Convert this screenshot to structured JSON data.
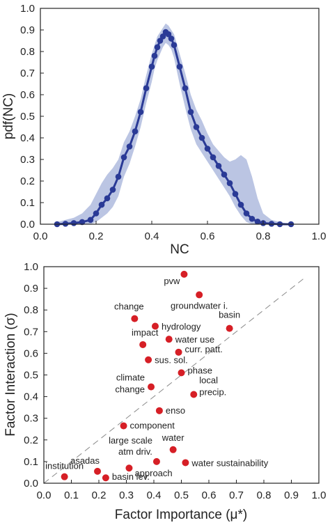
{
  "chart_data": [
    {
      "type": "line",
      "xlabel": "NC",
      "ylabel": "pdf(NC)",
      "xlim": [
        0,
        1.0
      ],
      "ylim": [
        0,
        1.0
      ],
      "xticks": [
        0,
        0.2,
        0.4,
        0.6,
        0.8,
        1.0
      ],
      "yticks": [
        0,
        0.1,
        0.2,
        0.3,
        0.4,
        0.5,
        0.6,
        0.7,
        0.8,
        0.9,
        1.0
      ],
      "xtick_labels": [
        "0.0",
        "0.2",
        "0.4",
        "0.6",
        "0.8",
        "1.0"
      ],
      "ytick_labels": [
        "0.0",
        "0.1",
        "0.2",
        "0.3",
        "0.4",
        "0.5",
        "0.6",
        "0.7",
        "0.8",
        "0.9",
        "1.0"
      ],
      "line_color": "#2a3a96",
      "band_color": "#8e9fd0",
      "series": [
        {
          "x": [
            0.06,
            0.09,
            0.12,
            0.15,
            0.18,
            0.2,
            0.22,
            0.24,
            0.26,
            0.28,
            0.3,
            0.32,
            0.34,
            0.36,
            0.38,
            0.4,
            0.41,
            0.42,
            0.43,
            0.44,
            0.45,
            0.46,
            0.47,
            0.48,
            0.5,
            0.52,
            0.54,
            0.56,
            0.58,
            0.6,
            0.62,
            0.64,
            0.66,
            0.68,
            0.7,
            0.72,
            0.74,
            0.76,
            0.78,
            0.8,
            0.83,
            0.86,
            0.9
          ],
          "y": [
            0.0,
            0.002,
            0.005,
            0.01,
            0.02,
            0.05,
            0.09,
            0.12,
            0.16,
            0.22,
            0.31,
            0.36,
            0.43,
            0.52,
            0.63,
            0.73,
            0.78,
            0.82,
            0.85,
            0.87,
            0.89,
            0.88,
            0.86,
            0.83,
            0.73,
            0.63,
            0.52,
            0.45,
            0.4,
            0.35,
            0.31,
            0.27,
            0.23,
            0.19,
            0.14,
            0.09,
            0.05,
            0.025,
            0.012,
            0.005,
            0.002,
            0.0,
            0.0
          ],
          "lower": [
            0.0,
            0.0,
            0.0,
            0.0,
            0.0,
            0.01,
            0.03,
            0.05,
            0.08,
            0.13,
            0.22,
            0.28,
            0.36,
            0.45,
            0.56,
            0.66,
            0.72,
            0.76,
            0.79,
            0.82,
            0.84,
            0.83,
            0.81,
            0.77,
            0.65,
            0.54,
            0.44,
            0.37,
            0.33,
            0.29,
            0.25,
            0.21,
            0.17,
            0.13,
            0.08,
            0.04,
            0.01,
            0.0,
            0.0,
            0.0,
            0.0,
            0.0,
            0.0
          ],
          "upper": [
            0.01,
            0.02,
            0.03,
            0.05,
            0.09,
            0.14,
            0.19,
            0.23,
            0.26,
            0.3,
            0.38,
            0.43,
            0.5,
            0.58,
            0.69,
            0.79,
            0.83,
            0.87,
            0.89,
            0.91,
            0.93,
            0.92,
            0.9,
            0.88,
            0.79,
            0.7,
            0.6,
            0.53,
            0.48,
            0.42,
            0.37,
            0.34,
            0.31,
            0.29,
            0.3,
            0.32,
            0.3,
            0.22,
            0.12,
            0.05,
            0.02,
            0.01,
            0.0
          ]
        }
      ]
    },
    {
      "type": "scatter",
      "xlabel": "Factor Importance (μ*)",
      "ylabel": "Factor Interaction (σ)",
      "xlim": [
        0,
        1.0
      ],
      "ylim": [
        0,
        1.0
      ],
      "xticks": [
        0,
        0.1,
        0.2,
        0.3,
        0.4,
        0.5,
        0.6,
        0.7,
        0.8,
        0.9,
        1.0
      ],
      "yticks": [
        0,
        0.1,
        0.2,
        0.3,
        0.4,
        0.5,
        0.6,
        0.7,
        0.8,
        0.9,
        1.0
      ],
      "xtick_labels": [
        "0.0",
        "0.1",
        "0.2",
        "0.3",
        "0.4",
        "0.5",
        "0.6",
        "0.7",
        "0.8",
        "0.9",
        "1.0"
      ],
      "ytick_labels": [
        "0.0",
        "0.1",
        "0.2",
        "0.3",
        "0.4",
        "0.5",
        "0.6",
        "0.7",
        "0.8",
        "0.9",
        "1.0"
      ],
      "point_color": "#d61f26",
      "reference_line": {
        "style": "dashed",
        "from": [
          0,
          0
        ],
        "to": [
          0.95,
          0.95
        ]
      },
      "points": [
        {
          "label": "pvw",
          "x": 0.51,
          "y": 0.965,
          "anchor": "end",
          "dx": -6,
          "dy": 14
        },
        {
          "label": "groundwater i.",
          "x": 0.565,
          "y": 0.87,
          "anchor": "middle",
          "dx": 0,
          "dy": 20
        },
        {
          "label": "change",
          "x": 0.33,
          "y": 0.76,
          "anchor": "middle",
          "dx": -8,
          "dy": -13
        },
        {
          "label": "basin",
          "x": 0.675,
          "y": 0.715,
          "anchor": "middle",
          "dx": 0,
          "dy": -15
        },
        {
          "label": "hydrology",
          "x": 0.405,
          "y": 0.725,
          "anchor": "start",
          "dx": 9,
          "dy": 5
        },
        {
          "label": "impact",
          "x": 0.36,
          "y": 0.64,
          "anchor": "middle",
          "dx": 3,
          "dy": -13
        },
        {
          "label": "water use",
          "x": 0.455,
          "y": 0.665,
          "anchor": "start",
          "dx": 9,
          "dy": 5
        },
        {
          "label": "curr. patt.",
          "x": 0.49,
          "y": 0.605,
          "anchor": "start",
          "dx": 9,
          "dy": 0
        },
        {
          "label": "sus. sol.",
          "x": 0.38,
          "y": 0.57,
          "anchor": "start",
          "dx": 9,
          "dy": 5
        },
        {
          "label": "phase",
          "x": 0.5,
          "y": 0.51,
          "anchor": "start",
          "dx": 9,
          "dy": 1
        },
        {
          "label": "climate",
          "x": 0.39,
          "y": 0.445,
          "anchor": "end",
          "dx": -9,
          "dy": -9
        },
        {
          "label": "change",
          "x": 0.39,
          "y": 0.445,
          "anchor": "end",
          "dx": -9,
          "dy": 8
        },
        {
          "label": "local",
          "x": 0.545,
          "y": 0.41,
          "anchor": "start",
          "dx": 8,
          "dy": -16
        },
        {
          "label": "precip.",
          "x": 0.545,
          "y": 0.41,
          "anchor": "start",
          "dx": 8,
          "dy": 1
        },
        {
          "label": "enso",
          "x": 0.42,
          "y": 0.335,
          "anchor": "start",
          "dx": 9,
          "dy": 4
        },
        {
          "label": "component",
          "x": 0.29,
          "y": 0.265,
          "anchor": "start",
          "dx": 9,
          "dy": 4
        },
        {
          "label": "water",
          "x": 0.47,
          "y": 0.155,
          "anchor": "middle",
          "dx": 0,
          "dy": -13
        },
        {
          "label": "large scale",
          "x": 0.41,
          "y": 0.1,
          "anchor": "end",
          "dx": -6,
          "dy": -26
        },
        {
          "label": "atm driv.",
          "x": 0.41,
          "y": 0.1,
          "anchor": "end",
          "dx": -6,
          "dy": -10
        },
        {
          "label": "asadas",
          "x": 0.195,
          "y": 0.055,
          "anchor": "end",
          "dx": 3,
          "dy": -11
        },
        {
          "label": "institution",
          "x": 0.075,
          "y": 0.03,
          "anchor": "middle",
          "dx": 0,
          "dy": -11
        },
        {
          "label": "approach",
          "x": 0.31,
          "y": 0.07,
          "anchor": "start",
          "dx": 8,
          "dy": 12
        },
        {
          "label": "water sustainability",
          "x": 0.515,
          "y": 0.095,
          "anchor": "start",
          "dx": 9,
          "dy": 5
        },
        {
          "label": "basin lev.",
          "x": 0.225,
          "y": 0.025,
          "anchor": "start",
          "dx": 9,
          "dy": 3
        }
      ]
    }
  ]
}
